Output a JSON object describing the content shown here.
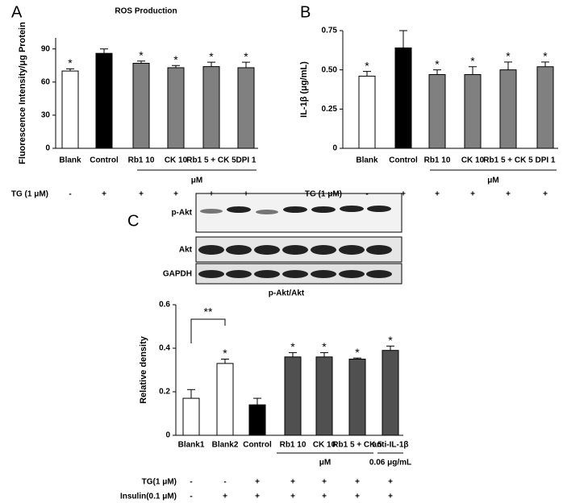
{
  "chart_data": [
    {
      "type": "bar",
      "panel": "A",
      "title": "ROS Production",
      "ylabel": "Fluorescence Intensity/μg Protein",
      "categories": [
        "Blank",
        "Control",
        "Rb1 10",
        "CK 10",
        "Rb1 5 + CK 5",
        "DPI 1"
      ],
      "values": [
        70,
        86,
        77,
        73,
        74,
        73
      ],
      "errors": [
        2,
        4,
        2,
        2,
        4,
        5
      ],
      "colors": [
        "#ffffff",
        "#000000",
        "#808080",
        "#808080",
        "#808080",
        "#808080"
      ],
      "significance": [
        "*",
        null,
        "*",
        "*",
        "*",
        "*"
      ],
      "ylim": [
        0,
        100
      ],
      "yticks": [
        0,
        30,
        60,
        90
      ],
      "group_label": "μM",
      "treatments": [
        {
          "name": "TG (1 μM)",
          "values": [
            "-",
            "+",
            "+",
            "+",
            "+",
            "+"
          ]
        }
      ]
    },
    {
      "type": "bar",
      "panel": "B",
      "ylabel": "IL-1β (μg/mL)",
      "categories": [
        "Blank",
        "Control",
        "Rb1 10",
        "CK 10",
        "Rb1 5 + CK 5",
        "DPI 1"
      ],
      "values": [
        0.46,
        0.64,
        0.47,
        0.47,
        0.5,
        0.52
      ],
      "errors": [
        0.03,
        0.11,
        0.03,
        0.05,
        0.05,
        0.03
      ],
      "colors": [
        "#ffffff",
        "#000000",
        "#808080",
        "#808080",
        "#808080",
        "#808080"
      ],
      "significance": [
        "*",
        null,
        "*",
        "*",
        "*",
        "*"
      ],
      "ylim": [
        0,
        0.75
      ],
      "yticks": [
        0,
        0.25,
        {
          "value": 0.5,
          "label": "0.50"
        },
        0.75
      ],
      "group_label": "μM",
      "treatments": [
        {
          "name": "TG (1 μM)",
          "values": [
            "-",
            "+",
            "+",
            "+",
            "+",
            "+"
          ]
        }
      ]
    },
    {
      "type": "bar",
      "panel": "C",
      "title": "p-Akt/Akt",
      "ylabel": "Relative  density",
      "blot_labels": [
        "p-Akt",
        "Akt",
        "GAPDH"
      ],
      "categories": [
        "Blank1",
        "Blank2",
        "Control",
        "Rb1 10",
        "CK 10",
        "Rb1 5 + CK 5",
        "anti-IL-1β"
      ],
      "values": [
        0.17,
        0.33,
        0.14,
        0.36,
        0.36,
        0.35,
        0.39
      ],
      "errors": [
        0.04,
        0.02,
        0.03,
        0.02,
        0.02,
        0.005,
        0.02
      ],
      "colors": [
        "#ffffff",
        "#ffffff",
        "#000000",
        "#505050",
        "#505050",
        "#505050",
        "#505050"
      ],
      "significance": [
        null,
        "*",
        null,
        "*",
        "*",
        "*",
        "*"
      ],
      "bracket_label": "**",
      "ylim": [
        0,
        0.6
      ],
      "yticks": [
        0,
        0.2,
        0.4,
        0.6
      ],
      "group_label": "μM",
      "dose_label": "0.06 μg/mL",
      "treatments": [
        {
          "name": "TG(1 μM)",
          "values": [
            "-",
            "-",
            "+",
            "+",
            "+",
            "+",
            "+"
          ]
        },
        {
          "name": "Insulin(0.1 μM)",
          "values": [
            "-",
            "+",
            "+",
            "+",
            "+",
            "+",
            "+"
          ]
        }
      ]
    }
  ]
}
